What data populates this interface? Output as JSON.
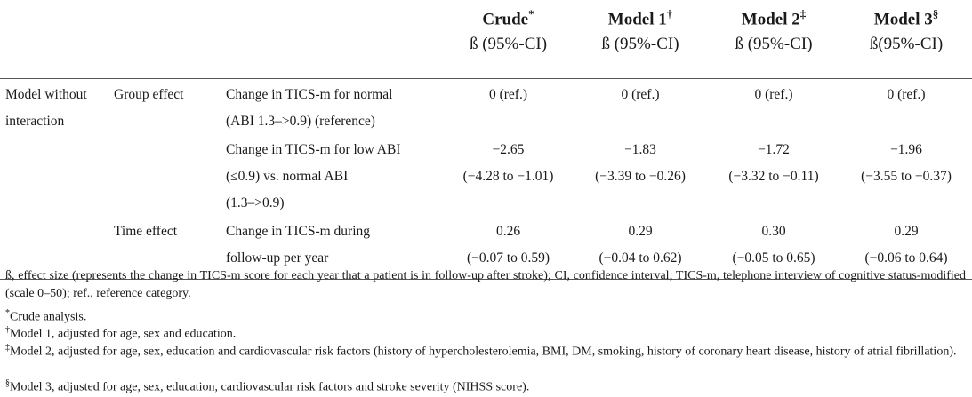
{
  "header": {
    "cols": [
      {
        "title": "Crude",
        "mark": "*",
        "sub": "ß (95%-CI)"
      },
      {
        "title": "Model 1",
        "mark": "†",
        "sub": "ß (95%-CI)"
      },
      {
        "title": "Model 2",
        "mark": "‡",
        "sub": "ß (95%-CI)"
      },
      {
        "title": "Model 3",
        "mark": "§",
        "sub": "ß(95%-CI)"
      }
    ]
  },
  "rows": {
    "model_label_1": "Model without",
    "model_label_2": "interaction",
    "group_effect": "Group effect",
    "time_effect": "Time effect",
    "r1": {
      "d1": "Change in TICS-m for normal",
      "d2": "(ABI 1.3–>0.9) (reference)",
      "v": [
        "0 (ref.)",
        "0 (ref.)",
        "0 (ref.)",
        "0 (ref.)"
      ]
    },
    "r2": {
      "d1": "Change in TICS-m for low ABI",
      "d2": "(≤0.9) vs. normal ABI",
      "d3": "(1.3–>0.9)",
      "v": [
        "−2.65",
        "−1.83",
        "−1.72",
        "−1.96"
      ],
      "ci": [
        "(−4.28 to −1.01)",
        "(−3.39 to −0.26)",
        "(−3.32 to −0.11)",
        "(−3.55 to −0.37)"
      ]
    },
    "r3": {
      "d1": "Change in TICS-m during",
      "d2": "follow-up per year",
      "v": [
        "0.26",
        "0.29",
        "0.30",
        "0.29"
      ],
      "ci": [
        "(−0.07 to 0.59)",
        "(−0.04 to 0.62)",
        "(−0.05 to 0.65)",
        "(−0.06 to 0.64)"
      ]
    }
  },
  "footnotes": {
    "main": "ß, effect size (represents the change in TICS-m score for each year that a patient is in follow-up after stroke); CI, confidence interval; TICS-m, telephone interview of cognitive status-modified (scale 0–50); ref., reference category.",
    "crude_mark": "*",
    "crude": "Crude analysis.",
    "m1_mark": "†",
    "m1": "Model 1, adjusted for age, sex and education.",
    "m2_mark": "‡",
    "m2": "Model 2, adjusted for age, sex, education and cardiovascular risk factors (history of hypercholesterolemia, BMI, DM, smoking, history of coronary heart disease, history of atrial fibrillation).",
    "m3_mark": "§",
    "m3": "Model 3, adjusted for age, sex, education, cardiovascular risk factors and stroke severity (NIHSS score)."
  }
}
